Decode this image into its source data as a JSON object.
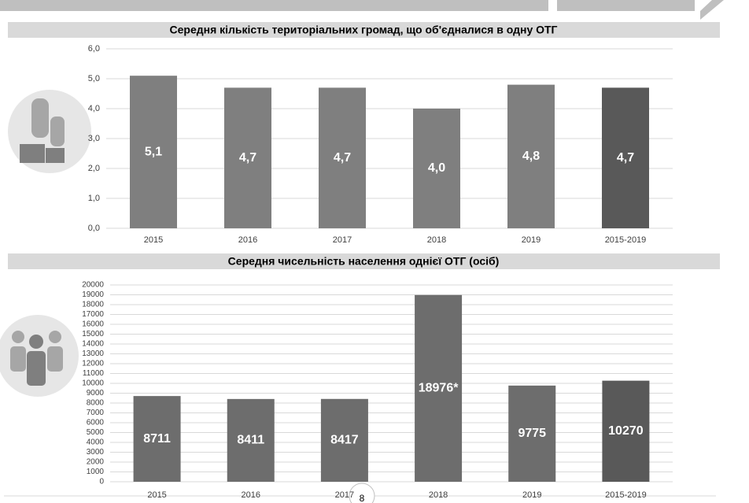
{
  "page_number": "8",
  "chart_data": [
    {
      "type": "bar",
      "title": "Середня кількість територіальних громад, що об'єдналися в одну ОТГ",
      "categories": [
        "2015",
        "2016",
        "2017",
        "2018",
        "2019",
        "2015-2019"
      ],
      "values": [
        5.1,
        4.7,
        4.7,
        4.0,
        4.8,
        4.7
      ],
      "value_labels": [
        "5,1",
        "4,7",
        "4,7",
        "4,0",
        "4,8",
        "4,7"
      ],
      "colors": [
        "#7f7f7f",
        "#7f7f7f",
        "#7f7f7f",
        "#7f7f7f",
        "#7f7f7f",
        "#595959"
      ],
      "ylim": [
        0,
        6
      ],
      "yticks": [
        {
          "value": 0,
          "label": "0,0"
        },
        {
          "value": 1,
          "label": "1,0"
        },
        {
          "value": 2,
          "label": "2,0"
        },
        {
          "value": 3,
          "label": "3,0"
        },
        {
          "value": 4,
          "label": "4,0"
        },
        {
          "value": 5,
          "label": "5,0"
        },
        {
          "value": 6,
          "label": "6,0"
        }
      ],
      "grid": true
    },
    {
      "type": "bar",
      "title": "Середня чисельність населення однієї ОТГ (осіб)",
      "categories": [
        "2015",
        "2016",
        "2017",
        "2018",
        "2019",
        "2015-2019"
      ],
      "values": [
        8711,
        8411,
        8417,
        18976,
        9775,
        10270
      ],
      "value_labels": [
        "8711",
        "8411",
        "8417",
        "18976*",
        "9775",
        "10270"
      ],
      "colors": [
        "#6d6d6d",
        "#6d6d6d",
        "#6d6d6d",
        "#6d6d6d",
        "#6d6d6d",
        "#595959"
      ],
      "ylim": [
        0,
        20000
      ],
      "yticks": [
        0,
        1000,
        2000,
        3000,
        4000,
        5000,
        6000,
        7000,
        8000,
        9000,
        10000,
        11000,
        12000,
        13000,
        14000,
        15000,
        16000,
        17000,
        18000,
        19000,
        20000
      ],
      "grid": true
    }
  ]
}
